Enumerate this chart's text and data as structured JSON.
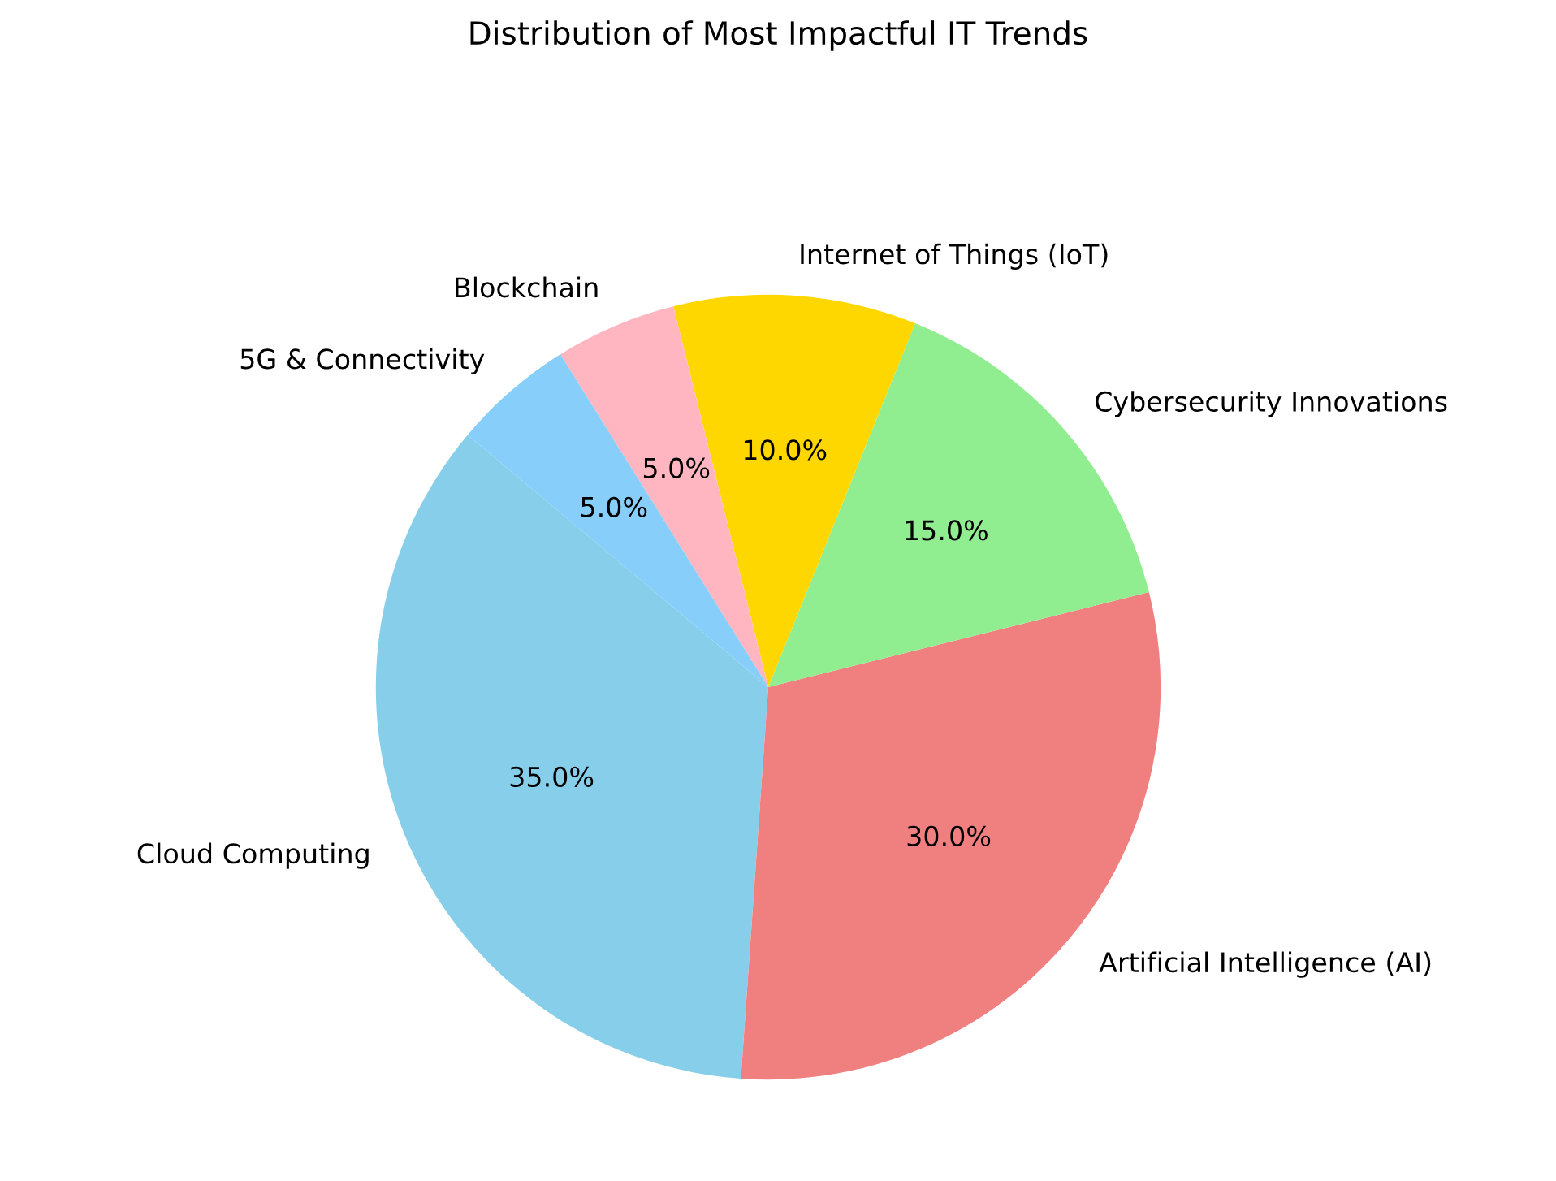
{
  "chart_data": {
    "type": "pie",
    "title": "Distribution of Most Impactful IT Trends",
    "categories": [
      "Cloud Computing",
      "Artificial Intelligence (AI)",
      "Cybersecurity Innovations",
      "Internet of Things (IoT)",
      "Blockchain",
      "5G & Connectivity"
    ],
    "values": [
      35,
      30,
      15,
      10,
      5,
      5
    ],
    "colors": [
      "#87ceeb",
      "#f08080",
      "#90ee90",
      "#ffd700",
      "#ffb6c1",
      "#87cefa"
    ],
    "value_labels": [
      "35.0%",
      "30.0%",
      "15.0%",
      "10.0%",
      "5.0%",
      "5.0%"
    ],
    "legend": false
  }
}
